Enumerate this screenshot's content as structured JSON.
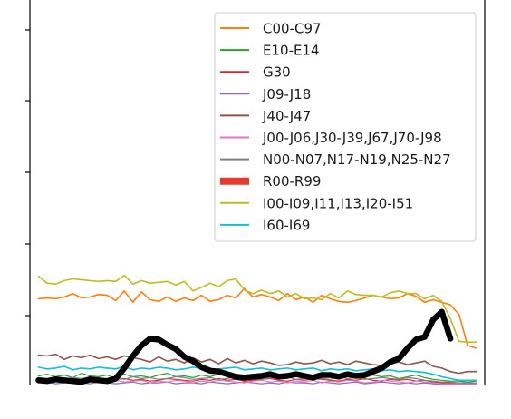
{
  "chart_data": {
    "type": "line",
    "title": "",
    "xlabel": "",
    "ylabel": "",
    "grid": false,
    "legend_position": "top-right",
    "x": [
      1,
      2,
      3,
      4,
      5,
      6,
      7,
      8,
      9,
      10,
      11,
      12,
      13,
      14,
      15,
      16,
      17,
      18,
      19,
      20,
      21,
      22,
      23,
      24,
      25,
      26,
      27,
      28,
      29,
      30,
      31,
      32,
      33,
      34,
      35,
      36,
      37,
      38,
      39,
      40,
      41,
      42,
      43,
      44,
      45,
      46,
      47,
      48,
      49,
      50,
      51,
      52
    ],
    "xlim": [
      0,
      53
    ],
    "ylim": [
      0,
      45
    ],
    "series": [
      {
        "name": "C00-C97",
        "color": "#ff7f0e",
        "width": 1.6,
        "values": [
          10,
          10.1,
          10,
          10.2,
          10.6,
          10.1,
          10.2,
          10.5,
          10.4,
          9.8,
          10.9,
          9.6,
          10.8,
          9.9,
          9.7,
          10.2,
          9.7,
          10.1,
          9.8,
          10.4,
          9.7,
          9.9,
          10.4,
          10.1,
          11.2,
          10.2,
          10.5,
          10.2,
          9.8,
          10.6,
          9.9,
          10.2,
          9.6,
          10.4,
          10,
          9.7,
          9.6,
          9.8,
          10.1,
          10.4,
          10.2,
          10,
          10.1,
          10.6,
          10.3,
          9.6,
          9.9,
          9.6,
          9.3,
          8.2,
          4.6,
          4.3
        ]
      },
      {
        "name": "E10-E14",
        "color": "#2ca02c",
        "width": 1.2,
        "values": [
          1.1,
          1.3,
          1.0,
          1.2,
          0.9,
          1.4,
          1.1,
          1.0,
          1.2,
          0.8,
          1.3,
          1.0,
          1.1,
          0.9,
          1.2,
          1.4,
          1.0,
          1.1,
          0.9,
          1.2,
          1.0,
          1.3,
          1.1,
          0.8,
          1.2,
          1.0,
          1.1,
          1.3,
          0.9,
          1.0,
          1.2,
          1.1,
          0.9,
          1.0,
          1.3,
          1.2,
          1.0,
          1.1,
          0.9,
          1.2,
          1.0,
          1.1,
          0.8,
          1.0,
          1.2,
          0.9,
          0.7,
          0.6,
          0.5,
          0.5,
          0.4,
          0.5
        ]
      },
      {
        "name": "G30",
        "color": "#d62728",
        "width": 1.2,
        "values": [
          0.7,
          0.6,
          0.8,
          0.5,
          0.7,
          0.6,
          0.9,
          0.6,
          0.5,
          0.7,
          0.8,
          0.6,
          0.7,
          0.5,
          0.6,
          0.8,
          0.7,
          0.6,
          0.5,
          0.7,
          0.6,
          0.8,
          0.6,
          0.7,
          0.5,
          0.6,
          0.7,
          0.8,
          0.6,
          0.5,
          0.7,
          0.6,
          0.8,
          0.7,
          0.6,
          0.5,
          0.7,
          0.6,
          0.8,
          0.6,
          0.5,
          0.7,
          0.6,
          0.7,
          0.5,
          0.6,
          0.4,
          0.3,
          0.3,
          0.2,
          0.2,
          0.3
        ]
      },
      {
        "name": "J09-J18",
        "color": "#9467bd",
        "width": 1.2,
        "values": [
          0.3,
          0.4,
          0.2,
          0.3,
          0.5,
          0.3,
          0.2,
          0.4,
          0.3,
          0.2,
          0.3,
          0.4,
          0.2,
          0.3,
          0.3,
          0.4,
          0.2,
          0.3,
          0.3,
          0.2,
          0.4,
          0.3,
          0.2,
          0.3,
          0.4,
          0.3,
          0.2,
          0.3,
          0.2,
          0.4,
          0.3,
          0.3,
          0.2,
          0.4,
          0.3,
          0.2,
          0.3,
          0.4,
          0.2,
          0.3,
          0.4,
          0.3,
          0.2,
          0.3,
          0.2,
          0.3,
          0.2,
          0.1,
          0.1,
          0.1,
          0.1,
          0.1
        ]
      },
      {
        "name": "J40-J47",
        "color": "#8c564b",
        "width": 1.6,
        "values": [
          3.5,
          3.4,
          3.6,
          3.0,
          3.4,
          3.2,
          3.5,
          3.1,
          3.3,
          3.0,
          3.4,
          3.2,
          3.0,
          2.7,
          3.3,
          2.8,
          3.0,
          2.6,
          3.2,
          2.7,
          3.0,
          2.5,
          3.1,
          2.6,
          2.9,
          2.5,
          2.8,
          2.6,
          2.3,
          2.4,
          2.7,
          2.5,
          2.6,
          2.9,
          2.5,
          2.7,
          2.4,
          2.8,
          2.6,
          2.4,
          2.3,
          2.5,
          2.7,
          2.4,
          2.6,
          2.8,
          2.2,
          2.0,
          1.6,
          1.4,
          1.6,
          1.6
        ]
      },
      {
        "name": "J00-J06,J30-J39,J67,J70-J98",
        "color": "#e377c2",
        "width": 1.2,
        "values": [
          0.4,
          0.6,
          0.5,
          0.3,
          0.5,
          0.6,
          0.4,
          0.5,
          0.3,
          0.6,
          0.4,
          0.5,
          0.6,
          0.3,
          0.5,
          0.4,
          0.6,
          0.5,
          0.3,
          0.5,
          0.4,
          0.6,
          0.5,
          0.4,
          0.3,
          0.5,
          0.6,
          0.4,
          0.5,
          0.3,
          0.5,
          0.4,
          0.6,
          0.3,
          0.5,
          0.4,
          0.6,
          0.5,
          0.3,
          0.4,
          0.6,
          0.5,
          0.4,
          0.3,
          0.5,
          0.4,
          0.3,
          0.2,
          0.2,
          0.2,
          0.2,
          0.2
        ]
      },
      {
        "name": "N00-N07,N17-N19,N25-N27",
        "color": "#7f7f7f",
        "width": 1.2,
        "values": [
          0.9,
          0.8,
          1.0,
          0.7,
          0.9,
          0.8,
          1.0,
          0.7,
          0.8,
          0.9,
          0.7,
          1.0,
          0.8,
          0.9,
          0.7,
          0.8,
          1.0,
          0.9,
          0.7,
          0.8,
          0.9,
          0.7,
          0.8,
          1.0,
          0.9,
          0.8,
          0.7,
          0.9,
          0.8,
          1.0,
          0.7,
          0.8,
          0.9,
          0.8,
          0.7,
          1.0,
          0.8,
          0.9,
          0.7,
          0.8,
          0.9,
          0.8,
          0.7,
          0.9,
          0.8,
          0.6,
          0.5,
          0.4,
          0.4,
          0.3,
          0.3,
          0.3
        ]
      },
      {
        "name": "R00-R99",
        "color": "#000000",
        "width": 6.5,
        "values": [
          0.6,
          0.5,
          0.7,
          0.6,
          0.5,
          0.4,
          0.7,
          0.6,
          0.5,
          0.8,
          2,
          3.4,
          4.6,
          5.4,
          5.3,
          4.7,
          4.2,
          3.3,
          2.8,
          2.1,
          1.7,
          1.6,
          1.3,
          1.0,
          0.9,
          1.0,
          1.1,
          1.3,
          1.0,
          1.1,
          1.3,
          1.1,
          0.9,
          1.2,
          1.2,
          1.0,
          1.3,
          1.1,
          1.2,
          1.6,
          2.0,
          2.7,
          3.1,
          4.3,
          5.3,
          5.6,
          7.6,
          8.5,
          5.4,
          0,
          0,
          0
        ]
      },
      {
        "name": "I00-I09,I11,I13,I20-I51",
        "color": "#bcbd22",
        "width": 1.6,
        "values": [
          12.6,
          11.8,
          11.7,
          12.1,
          12.3,
          12.2,
          12.1,
          12.0,
          12.1,
          12.0,
          12.7,
          11.7,
          12.1,
          11.8,
          11.9,
          12.0,
          11.6,
          12.0,
          10.9,
          11.3,
          11.8,
          11.4,
          12.1,
          12.3,
          11.0,
          10.6,
          11.0,
          10.6,
          10.9,
          10.2,
          10.6,
          10.0,
          10.1,
          9.9,
          10.6,
          10.1,
          10.9,
          10.5,
          10.4,
          10.4,
          10.2,
          10.7,
          10.9,
          10.6,
          10.6,
          10.0,
          10.4,
          9.7,
          7.7,
          5.1,
          5.0,
          5.0
        ]
      },
      {
        "name": "I60-I69",
        "color": "#17becf",
        "width": 1.6,
        "values": [
          2.1,
          1.9,
          2.0,
          2.2,
          1.8,
          2.0,
          1.9,
          2.1,
          2.0,
          1.9,
          2.2,
          1.8,
          2.0,
          1.9,
          2.1,
          2.0,
          1.8,
          1.9,
          2.1,
          2.0,
          1.8,
          1.9,
          2.0,
          2.1,
          1.8,
          1.9,
          2.0,
          1.8,
          1.9,
          2.0,
          1.8,
          1.9,
          2.0,
          1.7,
          1.9,
          1.8,
          1.9,
          1.7,
          1.8,
          1.9,
          1.7,
          1.8,
          1.6,
          1.7,
          1.6,
          1.5,
          1.3,
          1.0,
          0.8,
          0.6,
          0.6,
          0.6
        ]
      }
    ],
    "highlighted_series": "R00-R99"
  }
}
